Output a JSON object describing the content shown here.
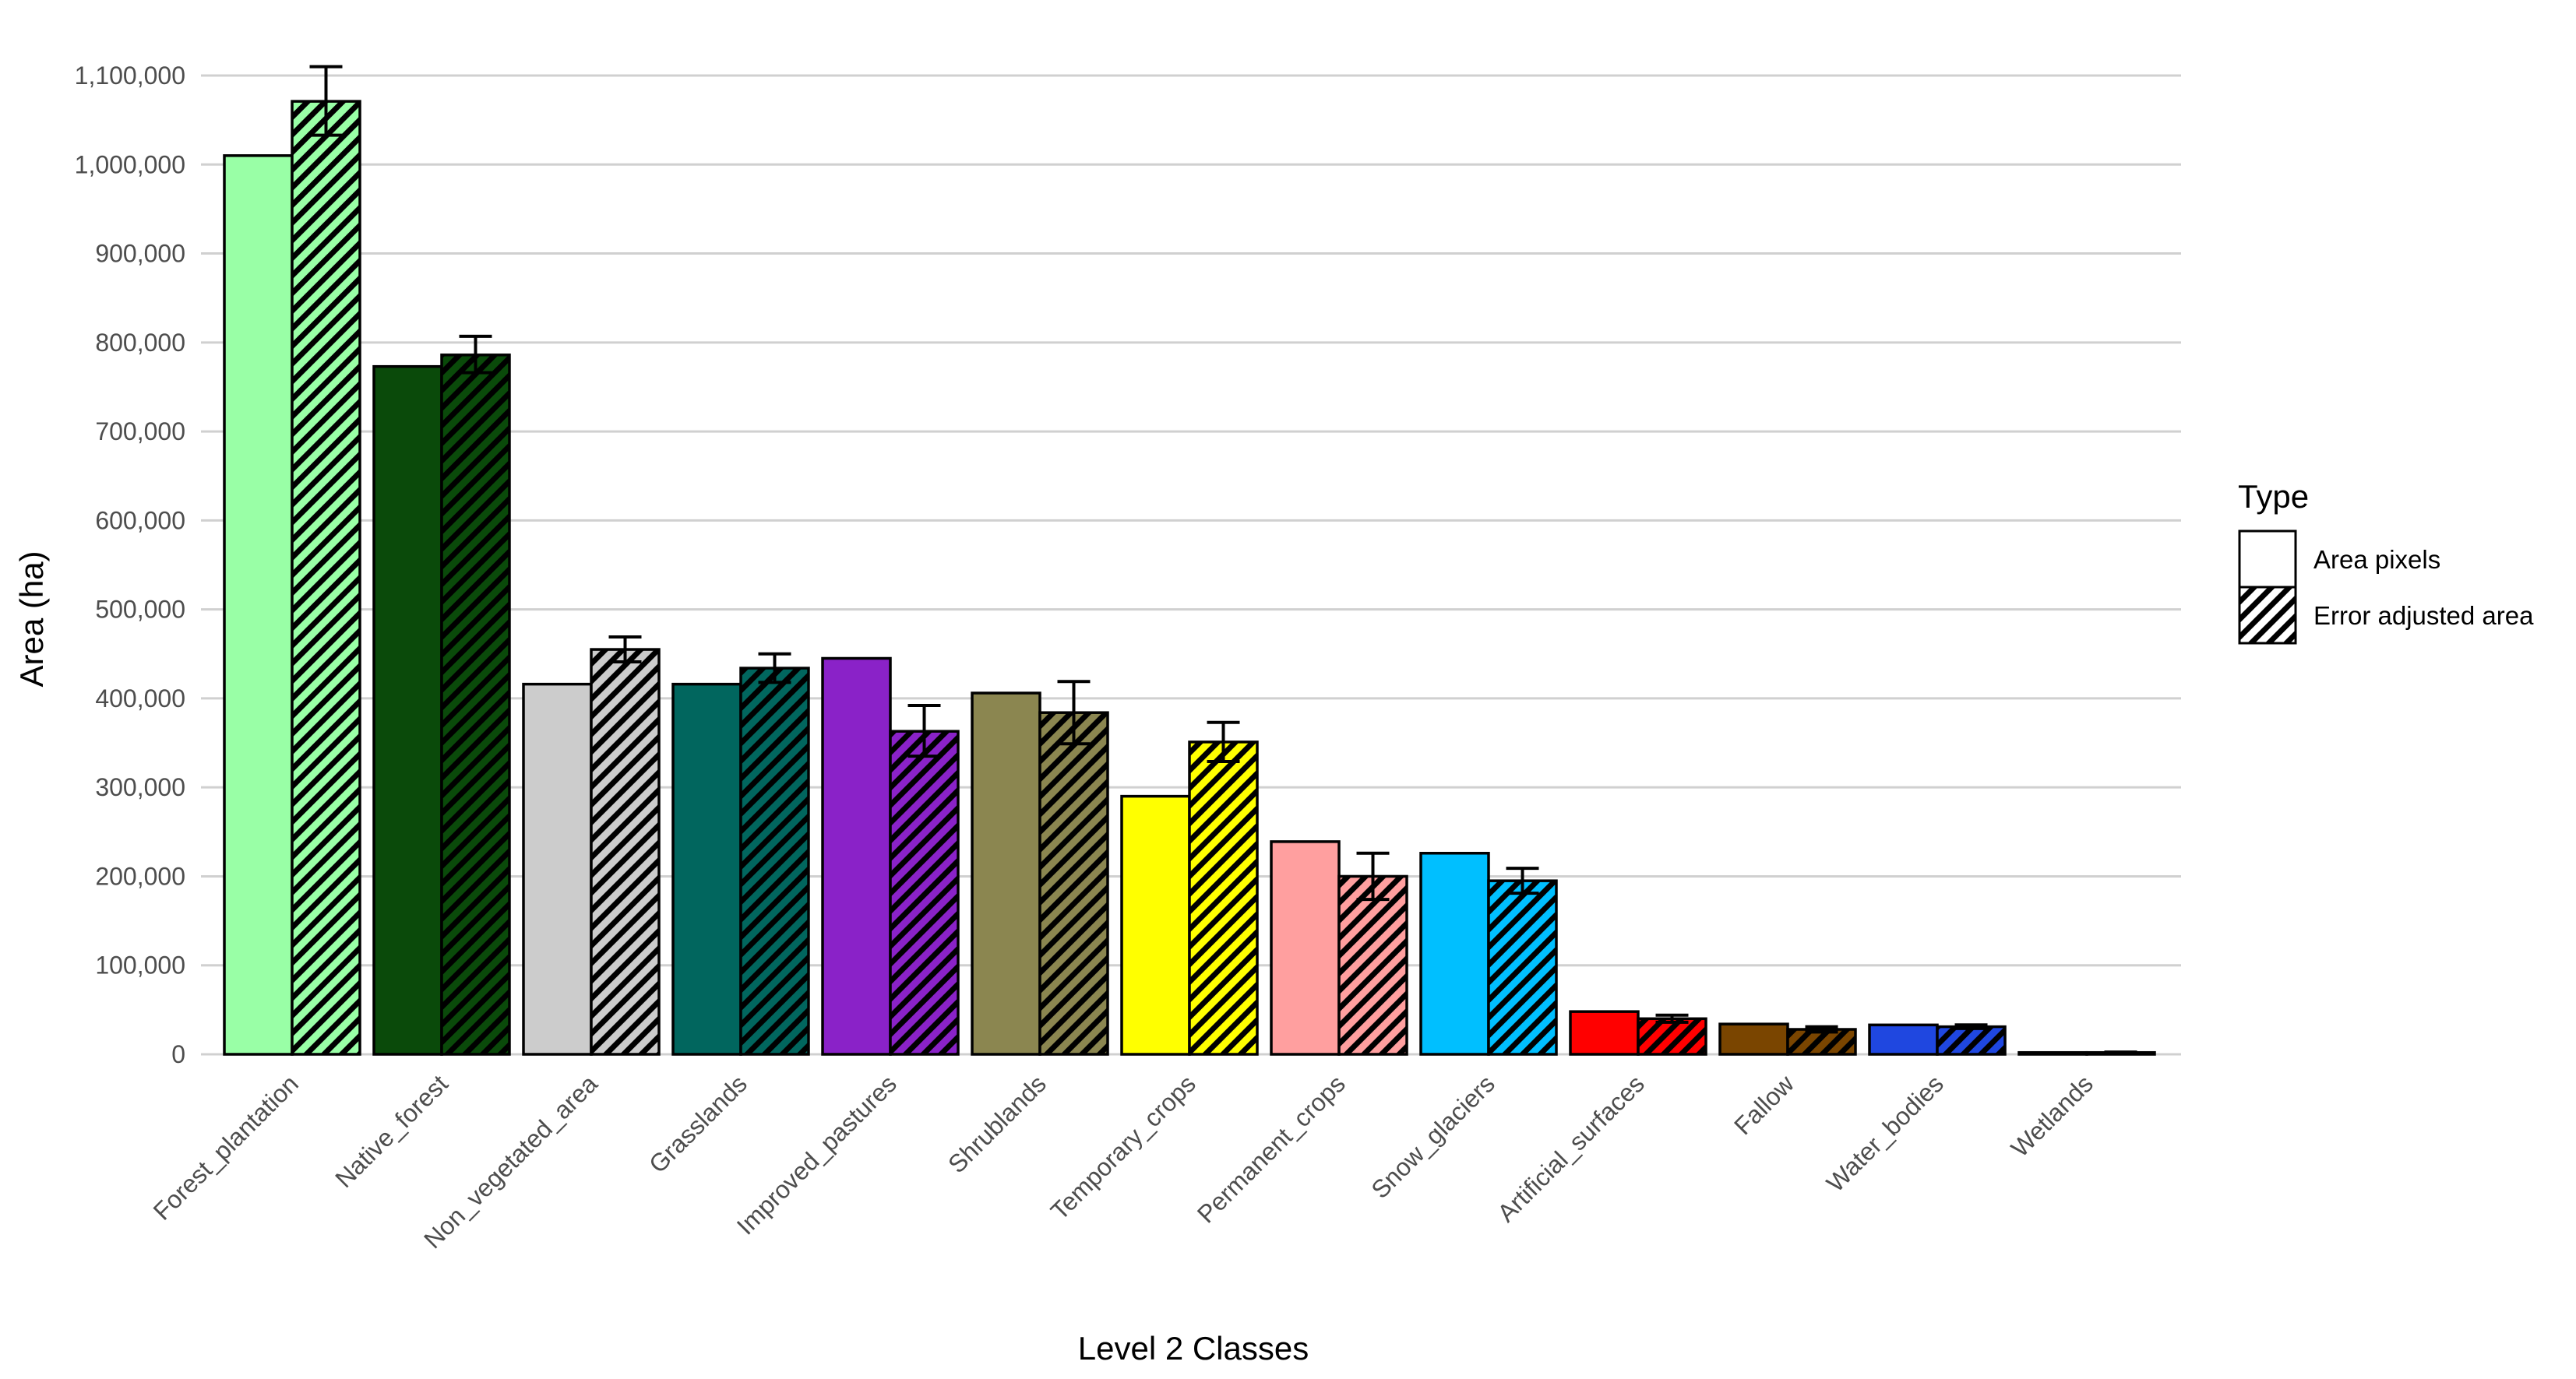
{
  "chart_data": {
    "type": "bar",
    "title": "",
    "xlabel": "Level 2 Classes",
    "ylabel": "Area (ha)",
    "ylim": [
      0,
      1100000
    ],
    "yticks": [
      0,
      100000,
      200000,
      300000,
      400000,
      500000,
      600000,
      700000,
      800000,
      900000,
      1000000,
      1100000
    ],
    "ytick_labels": [
      "0",
      "100,000",
      "200,000",
      "300,000",
      "400,000",
      "500,000",
      "600,000",
      "700,000",
      "800,000",
      "900,000",
      "1,000,000",
      "1,100,000"
    ],
    "grid": true,
    "categories": [
      "Forest_plantation",
      "Native_forest",
      "Non_vegetated_area",
      "Grasslands",
      "Improved_pastures",
      "Shrublands",
      "Temporary_crops",
      "Permanent_crops",
      "Snow_glaciers",
      "Artificial_surfaces",
      "Fallow",
      "Water_bodies",
      "Wetlands"
    ],
    "category_colors": [
      "#99ffa6",
      "#0a4a0a",
      "#cccccc",
      "#01665e",
      "#8a22c8",
      "#8b8650",
      "#ffff00",
      "#ff9f9f",
      "#00bfff",
      "#ff0000",
      "#7a4500",
      "#1f47e0",
      "#bfbfbf"
    ],
    "legend": {
      "title": "Type",
      "placement": "right",
      "entries": [
        "Area pixels",
        "Error adjusted area"
      ]
    },
    "series": [
      {
        "name": "Area pixels",
        "pattern": "solid",
        "values": [
          1010000,
          773000,
          416000,
          416000,
          445000,
          406000,
          290000,
          239000,
          226000,
          48000,
          34000,
          33000,
          2000
        ]
      },
      {
        "name": "Error adjusted area",
        "pattern": "hatched",
        "values": [
          1071000,
          786000,
          455000,
          434000,
          363000,
          384000,
          351000,
          200000,
          195000,
          40000,
          28000,
          31000,
          2000
        ],
        "error_low": [
          1033000,
          766000,
          441000,
          418000,
          335000,
          349000,
          329000,
          174000,
          181000,
          36000,
          25000,
          29000,
          1500
        ],
        "error_high": [
          1110000,
          807000,
          469000,
          450000,
          392000,
          419000,
          373000,
          226000,
          209000,
          44000,
          31000,
          33000,
          2500
        ]
      }
    ]
  }
}
